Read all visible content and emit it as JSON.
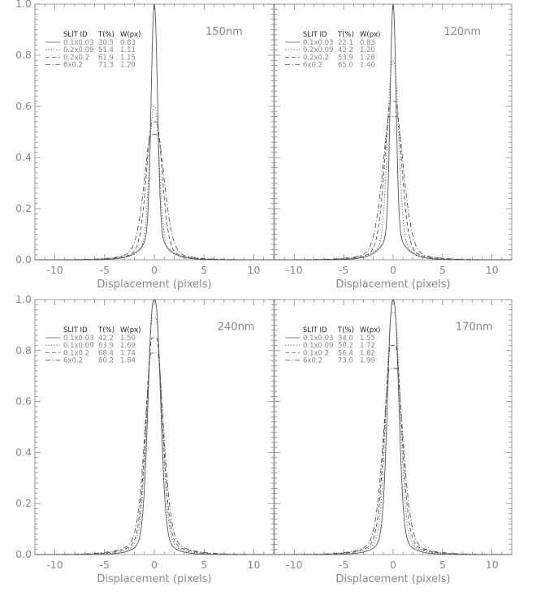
{
  "figure": {
    "colors": {
      "frame": "#888888",
      "curve": "#555555",
      "text": "#8a8a8a",
      "legend_head": "#222222"
    },
    "line_styles": [
      "solid",
      "dotted",
      "dashed",
      "dash-dot"
    ]
  },
  "chart_data": [
    {
      "type": "line",
      "panel_label": "150nm",
      "xlabel": "Displacement (pixels)",
      "ylabel": "",
      "xlim": [
        -12,
        12
      ],
      "ylim": [
        0.0,
        1.0
      ],
      "x_ticks": [
        -10,
        -5,
        0,
        5,
        10
      ],
      "y_ticks": [
        "0.0",
        "0.2",
        "0.4",
        "0.6",
        "0.8",
        "1.0"
      ],
      "legend": {
        "headers": [
          "SLIT ID",
          "T(%)",
          "W(px)"
        ],
        "rows": [
          {
            "slit": "0.1x0.03",
            "t": "30.5",
            "w": "0.83",
            "peak": 1.0,
            "width": 0.3
          },
          {
            "slit": "0.2x0.09",
            "t": "51.4",
            "w": "1.11",
            "peak": 0.6,
            "width": 0.45
          },
          {
            "slit": "0.2x0.2",
            "t": "61.9",
            "w": "1.15",
            "peak": 0.54,
            "width": 0.7
          },
          {
            "slit": "6x0.2",
            "t": "71.3",
            "w": "1.20",
            "peak": 0.49,
            "width": 0.9
          }
        ]
      }
    },
    {
      "type": "line",
      "panel_label": "120nm",
      "xlabel": "Displacement (pixels)",
      "ylabel": "",
      "xlim": [
        -12,
        12
      ],
      "ylim": [
        0.0,
        1.0
      ],
      "x_ticks": [
        -10,
        -5,
        0,
        5,
        10
      ],
      "y_ticks": [
        "0.0",
        "0.2",
        "0.4",
        "0.6",
        "0.8",
        "1.0"
      ],
      "legend": {
        "headers": [
          "SLIT ID",
          "T(%)",
          "W(px)"
        ],
        "rows": [
          {
            "slit": "0.1x0.03",
            "t": "22.1",
            "w": "0.83",
            "peak": 1.0,
            "width": 0.28
          },
          {
            "slit": "0.2x0.09",
            "t": "42.2",
            "w": "1.20",
            "peak": 0.78,
            "width": 0.5
          },
          {
            "slit": "0.2x0.2",
            "t": "53.9",
            "w": "1.28",
            "peak": 0.62,
            "width": 0.75
          },
          {
            "slit": "6x0.2",
            "t": "65.0",
            "w": "1.40",
            "peak": 0.56,
            "width": 0.95
          }
        ]
      }
    },
    {
      "type": "line",
      "panel_label": "240nm",
      "xlabel": "Displacement (pixels)",
      "ylabel": "",
      "xlim": [
        -12,
        12
      ],
      "ylim": [
        0.0,
        1.0
      ],
      "x_ticks": [
        -10,
        -5,
        0,
        5,
        10
      ],
      "y_ticks": [
        "0.0",
        "0.2",
        "0.4",
        "0.6",
        "0.8",
        "1.0"
      ],
      "legend": {
        "headers": [
          "SLIT ID",
          "T(%)",
          "W(px)"
        ],
        "rows": [
          {
            "slit": "0.1x0.03",
            "t": "42.2",
            "w": "1.50",
            "peak": 1.0,
            "width": 0.55
          },
          {
            "slit": "0.1x0.09",
            "t": "63.9",
            "w": "1.69",
            "peak": 0.93,
            "width": 0.65
          },
          {
            "slit": "0.1x0.2",
            "t": "68.4",
            "w": "1.74",
            "peak": 0.85,
            "width": 0.72
          },
          {
            "slit": "6x0.2",
            "t": "80.2",
            "w": "1.84",
            "peak": 0.79,
            "width": 0.82
          }
        ]
      }
    },
    {
      "type": "line",
      "panel_label": "170nm",
      "xlabel": "Displacement (pixels)",
      "ylabel": "",
      "xlim": [
        -12,
        12
      ],
      "ylim": [
        0.0,
        1.0
      ],
      "x_ticks": [
        -10,
        -5,
        0,
        5,
        10
      ],
      "y_ticks": [
        "0.0",
        "0.2",
        "0.4",
        "0.6",
        "0.8",
        "1.0"
      ],
      "legend": {
        "headers": [
          "SLIT ID",
          "T(%)",
          "W(px)"
        ],
        "rows": [
          {
            "slit": "0.1x0.03",
            "t": "34.0",
            "w": "1.55",
            "peak": 1.0,
            "width": 0.5
          },
          {
            "slit": "0.1x0.09",
            "t": "50.2",
            "w": "1.72",
            "peak": 0.95,
            "width": 0.62
          },
          {
            "slit": "0.1x0.2",
            "t": "56.4",
            "w": "1.82",
            "peak": 0.82,
            "width": 0.75
          },
          {
            "slit": "6x0.2",
            "t": "73.0",
            "w": "1.99",
            "peak": 0.73,
            "width": 0.88
          }
        ]
      }
    }
  ]
}
